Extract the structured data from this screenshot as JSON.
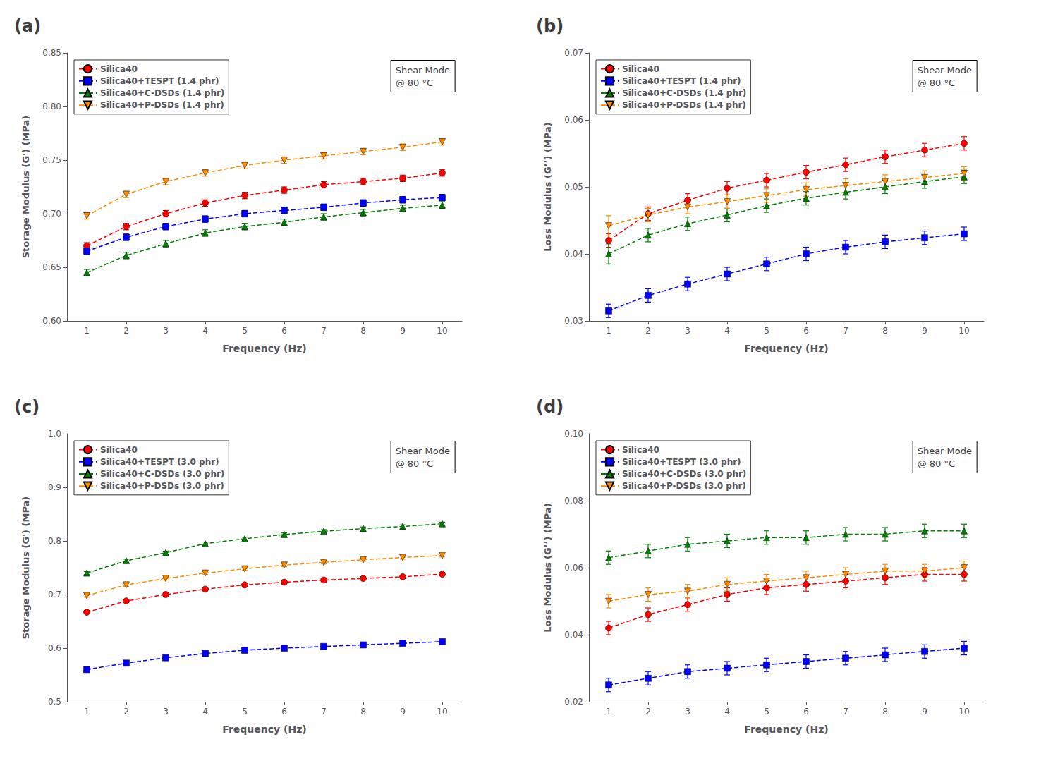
{
  "chart_data": [
    {
      "type": "line",
      "title": "(a)",
      "xlabel": "Frequency (Hz)",
      "ylabel": "Storage Modulus (G') (MPa)",
      "annotation": "Shear Mode\n@ 80 °C",
      "x": [
        1,
        2,
        3,
        4,
        5,
        6,
        7,
        8,
        9,
        10
      ],
      "xlim": [
        0.5,
        10.5
      ],
      "xticks": [
        1,
        2,
        3,
        4,
        5,
        6,
        7,
        8,
        9,
        10
      ],
      "ylim": [
        0.6,
        0.85
      ],
      "yticks": [
        {
          "value": 0.6,
          "label": "0.60"
        },
        0.65,
        {
          "value": 0.7,
          "label": "0.70"
        },
        0.75,
        {
          "value": 0.8,
          "label": "0.80"
        },
        0.85
      ],
      "grid": false,
      "legend": "upper left",
      "series": [
        {
          "name": "Silica40",
          "color": "#FF0000",
          "marker": "circle",
          "line_style": "dashed",
          "values": [
            0.67,
            0.688,
            0.7,
            0.71,
            0.717,
            0.722,
            0.727,
            0.73,
            0.733,
            0.738
          ],
          "yerr": [
            0.003,
            0.003,
            0.003,
            0.003,
            0.003,
            0.003,
            0.003,
            0.003,
            0.003,
            0.003
          ]
        },
        {
          "name": "Silica40+TESPT (1.4 phr)",
          "color": "#0000FF",
          "marker": "square",
          "line_style": "dashed",
          "values": [
            0.665,
            0.678,
            0.688,
            0.695,
            0.7,
            0.703,
            0.706,
            0.71,
            0.713,
            0.715
          ],
          "yerr": [
            0.003,
            0.003,
            0.003,
            0.003,
            0.003,
            0.003,
            0.003,
            0.003,
            0.003,
            0.003
          ]
        },
        {
          "name": "Silica40+C-DSDs (1.4 phr)",
          "color": "#008000",
          "marker": "triangle-up",
          "line_style": "dashed",
          "values": [
            0.645,
            0.661,
            0.672,
            0.682,
            0.688,
            0.692,
            0.697,
            0.701,
            0.705,
            0.708
          ],
          "yerr": [
            0.003,
            0.003,
            0.003,
            0.003,
            0.003,
            0.003,
            0.003,
            0.003,
            0.003,
            0.003
          ]
        },
        {
          "name": "Silica40+P-DSDs (1.4 phr)",
          "color": "#FF8C00",
          "marker": "triangle-down",
          "line_style": "dashed",
          "values": [
            0.698,
            0.718,
            0.73,
            0.738,
            0.745,
            0.75,
            0.754,
            0.758,
            0.762,
            0.767
          ],
          "yerr": [
            0.003,
            0.003,
            0.003,
            0.003,
            0.003,
            0.003,
            0.003,
            0.003,
            0.003,
            0.003
          ]
        }
      ]
    },
    {
      "type": "line",
      "title": "(b)",
      "xlabel": "Frequency (Hz)",
      "ylabel": "Loss Modulus (G’’) (MPa)",
      "annotation": "Shear Mode\n@ 80 °C",
      "x": [
        1,
        2,
        3,
        4,
        5,
        6,
        7,
        8,
        9,
        10
      ],
      "xlim": [
        0.5,
        10.5
      ],
      "xticks": [
        1,
        2,
        3,
        4,
        5,
        6,
        7,
        8,
        9,
        10
      ],
      "ylim": [
        0.03,
        0.07
      ],
      "yticks": [
        0.03,
        0.04,
        0.05,
        0.06,
        0.07
      ],
      "grid": false,
      "legend": "upper left",
      "series": [
        {
          "name": "Silica40",
          "color": "#FF0000",
          "marker": "circle",
          "line_style": "dashed",
          "values": [
            0.042,
            0.046,
            0.048,
            0.0498,
            0.051,
            0.0522,
            0.0533,
            0.0545,
            0.0555,
            0.0565
          ],
          "yerr": [
            0.001,
            0.001,
            0.001,
            0.001,
            0.001,
            0.001,
            0.001,
            0.001,
            0.001,
            0.001
          ]
        },
        {
          "name": "Silica40+TESPT (1.4 phr)",
          "color": "#0000FF",
          "marker": "square",
          "line_style": "dashed",
          "values": [
            0.0315,
            0.0338,
            0.0355,
            0.037,
            0.0385,
            0.04,
            0.041,
            0.0418,
            0.0424,
            0.043
          ],
          "yerr": [
            0.001,
            0.001,
            0.001,
            0.001,
            0.001,
            0.001,
            0.001,
            0.001,
            0.001,
            0.001
          ]
        },
        {
          "name": "Silica40+C-DSDs (1.4 phr)",
          "color": "#008000",
          "marker": "triangle-up",
          "line_style": "dashed",
          "values": [
            0.04,
            0.0428,
            0.0445,
            0.0458,
            0.0472,
            0.0483,
            0.0492,
            0.05,
            0.0508,
            0.0515
          ],
          "yerr": [
            0.0015,
            0.001,
            0.001,
            0.001,
            0.001,
            0.001,
            0.001,
            0.001,
            0.001,
            0.001
          ]
        },
        {
          "name": "Silica40+P-DSDs (1.4 phr)",
          "color": "#FF8C00",
          "marker": "triangle-down",
          "line_style": "dashed",
          "values": [
            0.0442,
            0.0458,
            0.047,
            0.0478,
            0.0487,
            0.0496,
            0.0502,
            0.0508,
            0.0514,
            0.052
          ],
          "yerr": [
            0.0015,
            0.001,
            0.001,
            0.001,
            0.001,
            0.001,
            0.001,
            0.001,
            0.001,
            0.001
          ]
        }
      ]
    },
    {
      "type": "line",
      "title": "(c)",
      "xlabel": "Frequency (Hz)",
      "ylabel": "Storage Modulus (G') (MPa)",
      "annotation": "Shear Mode\n@ 80 °C",
      "x": [
        1,
        2,
        3,
        4,
        5,
        6,
        7,
        8,
        9,
        10
      ],
      "xlim": [
        0.5,
        10.5
      ],
      "xticks": [
        1,
        2,
        3,
        4,
        5,
        6,
        7,
        8,
        9,
        10
      ],
      "ylim": [
        0.5,
        1.0
      ],
      "yticks": [
        0.5,
        0.6,
        0.7,
        0.8,
        0.9,
        {
          "value": 1.0,
          "label": "1.0"
        }
      ],
      "grid": false,
      "legend": "upper left",
      "series": [
        {
          "name": "Silica40",
          "color": "#FF0000",
          "marker": "circle",
          "line_style": "dashed",
          "values": [
            0.667,
            0.688,
            0.7,
            0.71,
            0.718,
            0.723,
            0.727,
            0.73,
            0.733,
            0.738
          ],
          "yerr": [
            0.003,
            0.003,
            0.003,
            0.003,
            0.003,
            0.003,
            0.003,
            0.003,
            0.003,
            0.003
          ]
        },
        {
          "name": "Silica40+TESPT (3.0 phr)",
          "color": "#0000FF",
          "marker": "square",
          "line_style": "dashed",
          "values": [
            0.56,
            0.572,
            0.582,
            0.59,
            0.596,
            0.6,
            0.603,
            0.606,
            0.609,
            0.612
          ],
          "yerr": [
            0.003,
            0.003,
            0.003,
            0.003,
            0.003,
            0.003,
            0.003,
            0.003,
            0.003,
            0.003
          ]
        },
        {
          "name": "Silica40+C-DSDs (3.0 phr)",
          "color": "#008000",
          "marker": "triangle-up",
          "line_style": "dashed",
          "values": [
            0.74,
            0.763,
            0.778,
            0.795,
            0.804,
            0.812,
            0.818,
            0.823,
            0.827,
            0.832
          ],
          "yerr": [
            0.003,
            0.003,
            0.003,
            0.003,
            0.003,
            0.003,
            0.003,
            0.003,
            0.003,
            0.003
          ]
        },
        {
          "name": "Silica40+P-DSDs (3.0 phr)",
          "color": "#FF8C00",
          "marker": "triangle-down",
          "line_style": "dashed",
          "values": [
            0.698,
            0.718,
            0.73,
            0.74,
            0.748,
            0.755,
            0.76,
            0.765,
            0.769,
            0.773
          ],
          "yerr": [
            0.003,
            0.003,
            0.003,
            0.003,
            0.003,
            0.003,
            0.003,
            0.003,
            0.003,
            0.003
          ]
        }
      ]
    },
    {
      "type": "line",
      "title": "(d)",
      "xlabel": "Frequency (Hz)",
      "ylabel": "Loss Modulus (G’’) (MPa)",
      "annotation": "Shear Mode\n@ 80 °C",
      "x": [
        1,
        2,
        3,
        4,
        5,
        6,
        7,
        8,
        9,
        10
      ],
      "xlim": [
        0.5,
        10.5
      ],
      "xticks": [
        1,
        2,
        3,
        4,
        5,
        6,
        7,
        8,
        9,
        10
      ],
      "ylim": [
        0.02,
        0.1
      ],
      "yticks": [
        0.02,
        0.04,
        0.06,
        0.08,
        {
          "value": 0.1,
          "label": "0.10"
        }
      ],
      "grid": false,
      "legend": "upper left",
      "series": [
        {
          "name": "Silica40",
          "color": "#FF0000",
          "marker": "circle",
          "line_style": "dashed",
          "values": [
            0.042,
            0.046,
            0.049,
            0.052,
            0.054,
            0.055,
            0.056,
            0.057,
            0.058,
            0.058
          ],
          "yerr": [
            0.002,
            0.002,
            0.002,
            0.002,
            0.002,
            0.002,
            0.002,
            0.002,
            0.002,
            0.002
          ]
        },
        {
          "name": "Silica40+TESPT (3.0 phr)",
          "color": "#0000FF",
          "marker": "square",
          "line_style": "dashed",
          "values": [
            0.025,
            0.027,
            0.029,
            0.03,
            0.031,
            0.032,
            0.033,
            0.034,
            0.035,
            0.036
          ],
          "yerr": [
            0.002,
            0.002,
            0.002,
            0.002,
            0.002,
            0.002,
            0.002,
            0.002,
            0.002,
            0.002
          ]
        },
        {
          "name": "Silica40+C-DSDs (3.0 phr)",
          "color": "#008000",
          "marker": "triangle-up",
          "line_style": "dashed",
          "values": [
            0.063,
            0.065,
            0.067,
            0.068,
            0.069,
            0.069,
            0.07,
            0.07,
            0.071,
            0.071
          ],
          "yerr": [
            0.002,
            0.002,
            0.002,
            0.002,
            0.002,
            0.002,
            0.002,
            0.002,
            0.002,
            0.002
          ]
        },
        {
          "name": "Silica40+P-DSDs (3.0 phr)",
          "color": "#FF8C00",
          "marker": "triangle-down",
          "line_style": "dashed",
          "values": [
            0.05,
            0.052,
            0.053,
            0.055,
            0.056,
            0.057,
            0.058,
            0.059,
            0.059,
            0.06
          ],
          "yerr": [
            0.002,
            0.002,
            0.002,
            0.002,
            0.002,
            0.002,
            0.002,
            0.002,
            0.002,
            0.002
          ]
        }
      ]
    }
  ]
}
